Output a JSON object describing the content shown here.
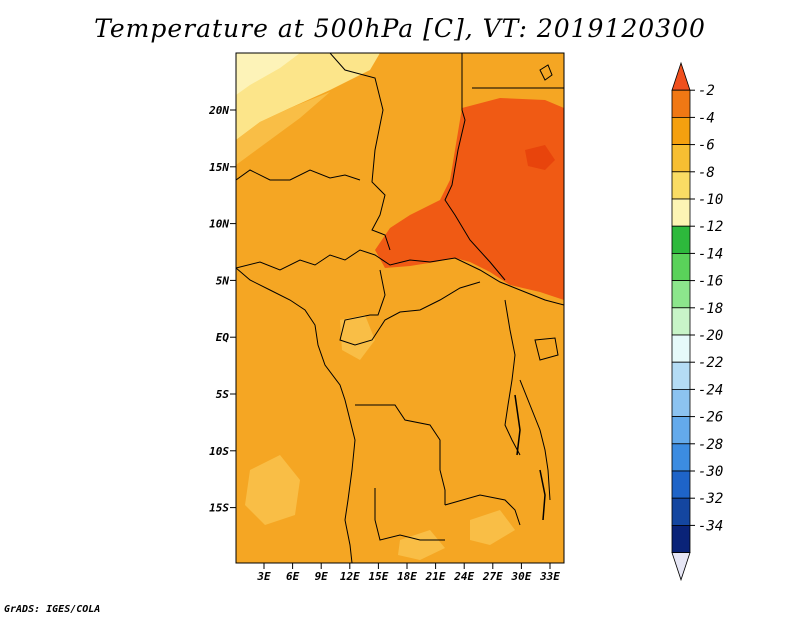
{
  "title": "Temperature at 500hPa [C], VT: 2019120300",
  "credit": "GrADS: IGES/COLA",
  "map": {
    "lat_labels": [
      "20N",
      "15N",
      "10N",
      "5N",
      "EQ",
      "5S",
      "10S",
      "15S"
    ],
    "lon_labels": [
      "3E",
      "6E",
      "9E",
      "12E",
      "15E",
      "18E",
      "21E",
      "24E",
      "27E",
      "30E",
      "33E"
    ],
    "fill_colors": {
      "warm_core": "#f05a14",
      "orange": "#f5a623",
      "light_orange": "#f9be46",
      "pale_yellow": "#fce58a",
      "pale": "#fdf3b8",
      "border_line": "#000000"
    }
  },
  "colorbar": {
    "labels": [
      "-2",
      "-4",
      "-6",
      "-8",
      "-10",
      "-12",
      "-14",
      "-16",
      "-18",
      "-20",
      "-22",
      "-24",
      "-26",
      "-28",
      "-30",
      "-32",
      "-34"
    ],
    "colors": [
      "#f0501e",
      "#f07814",
      "#f5a00f",
      "#f7be32",
      "#fadc64",
      "#fdf5b4",
      "#2db93c",
      "#5ad25a",
      "#8ce68c",
      "#c8f5c8",
      "#e6fafa",
      "#b4dcf5",
      "#8cc3f0",
      "#64aaeb",
      "#3c8ce1",
      "#1e64c8",
      "#1446a0",
      "#0a2378",
      "#e6e6f5"
    ]
  }
}
